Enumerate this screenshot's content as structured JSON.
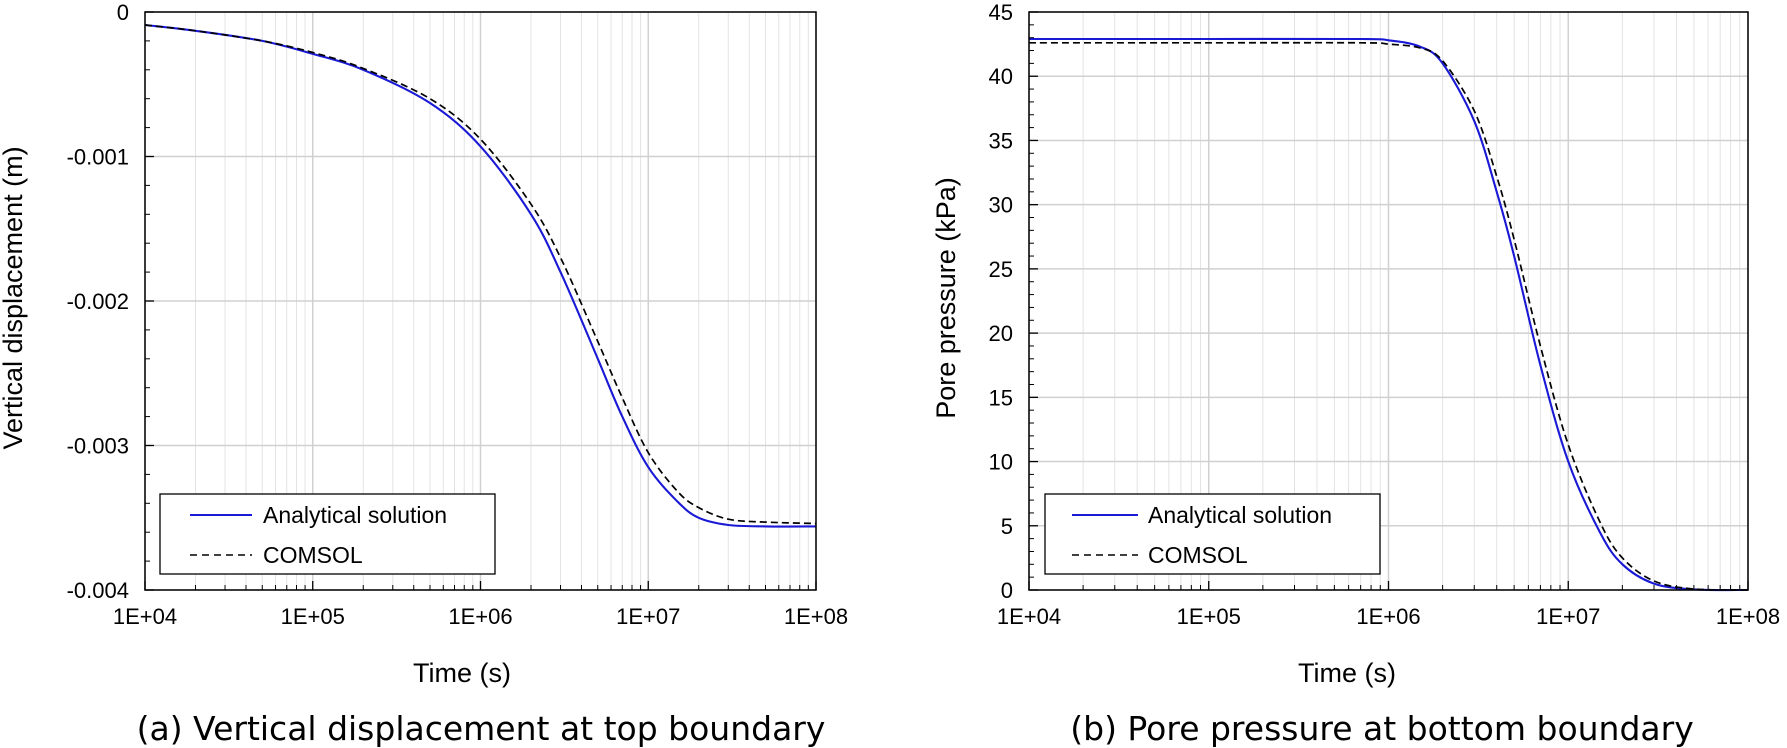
{
  "colors": {
    "analytical": "#1a1ad6",
    "comsol": "#000000",
    "major_grid": "#d0d0d0",
    "minor_grid": "#e3e3e3"
  },
  "chart_data": [
    {
      "type": "line",
      "caption": "(a) Vertical displacement at top boundary",
      "xlabel": "Time (s)",
      "ylabel": "Vertical displacement (m)",
      "xscale": "log",
      "xlim": [
        10000,
        100000000
      ],
      "ylim": [
        -0.004,
        0
      ],
      "x_tick_labels": [
        "1E+04",
        "1E+05",
        "1E+06",
        "1E+07",
        "1E+08"
      ],
      "y_tick_labels": [
        "0",
        "-0.001",
        "-0.002",
        "-0.003",
        "-0.004"
      ],
      "grid": true,
      "legend_position": "bottom-left",
      "series": [
        {
          "name": "Analytical solution",
          "style": "solid",
          "color_key": "analytical",
          "x": [
            10000,
            20000,
            50000,
            100000,
            200000,
            500000,
            1000000,
            2000000,
            3000000,
            5000000,
            7000000,
            10000000,
            15000000,
            20000000,
            30000000,
            50000000,
            100000000
          ],
          "y": [
            -9e-05,
            -0.00013,
            -0.0002,
            -0.00029,
            -0.0004,
            -0.00063,
            -0.00093,
            -0.0014,
            -0.0018,
            -0.0024,
            -0.0028,
            -0.00315,
            -0.00339,
            -0.0035,
            -0.00355,
            -0.00356,
            -0.00356
          ]
        },
        {
          "name": "COMSOL",
          "style": "dashed",
          "color_key": "comsol",
          "x": [
            10000,
            20000,
            50000,
            100000,
            200000,
            500000,
            1000000,
            2000000,
            3000000,
            5000000,
            7000000,
            10000000,
            15000000,
            20000000,
            30000000,
            50000000,
            100000000
          ],
          "y": [
            -9e-05,
            -0.00013,
            -0.0002,
            -0.00028,
            -0.00039,
            -0.0006,
            -0.00088,
            -0.00133,
            -0.0017,
            -0.00228,
            -0.00267,
            -0.00305,
            -0.00332,
            -0.00343,
            -0.00351,
            -0.00353,
            -0.00354
          ]
        }
      ]
    },
    {
      "type": "line",
      "caption": "(b) Pore pressure at bottom boundary",
      "xlabel": "Time (s)",
      "ylabel": "Pore pressure (kPa)",
      "xscale": "log",
      "xlim": [
        10000,
        100000000
      ],
      "ylim": [
        0,
        45
      ],
      "x_tick_labels": [
        "1E+04",
        "1E+05",
        "1E+06",
        "1E+07",
        "1E+08"
      ],
      "y_tick_labels": [
        "0",
        "5",
        "10",
        "15",
        "20",
        "25",
        "30",
        "35",
        "40",
        "45"
      ],
      "grid": true,
      "legend_position": "bottom-left",
      "series": [
        {
          "name": "Analytical solution",
          "style": "solid",
          "color_key": "analytical",
          "x": [
            10000,
            100000,
            700000,
            1000000,
            1500000,
            2000000,
            3000000,
            4000000,
            5000000,
            7000000,
            10000000,
            15000000,
            20000000,
            30000000,
            50000000,
            100000000
          ],
          "y": [
            42.9,
            42.9,
            42.9,
            42.8,
            42.3,
            41,
            36.5,
            31,
            26,
            17.5,
            10,
            4.5,
            2,
            0.5,
            0.05,
            0
          ]
        },
        {
          "name": "COMSOL",
          "style": "dashed",
          "color_key": "comsol",
          "x": [
            10000,
            100000,
            700000,
            1000000,
            1500000,
            2000000,
            3000000,
            4000000,
            5000000,
            7000000,
            10000000,
            15000000,
            20000000,
            30000000,
            50000000,
            100000000
          ],
          "y": [
            42.6,
            42.6,
            42.6,
            42.5,
            42.2,
            41.2,
            37.3,
            32.2,
            27.3,
            19,
            11.3,
            5.3,
            2.5,
            0.7,
            0.08,
            0
          ]
        }
      ]
    }
  ]
}
